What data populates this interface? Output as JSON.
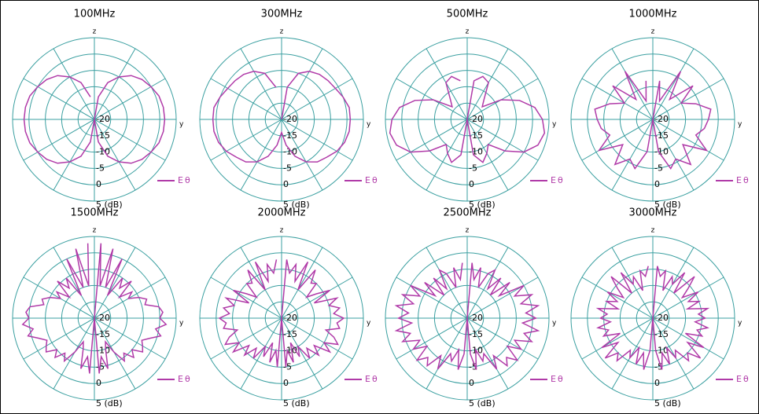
{
  "chart_data": [
    {
      "type": "polar",
      "title": "100MHz",
      "x_axis_label": "y",
      "y_axis_label": "z",
      "theta": [
        0,
        10,
        20,
        30,
        40,
        50,
        60,
        70,
        80,
        90,
        100,
        110,
        120,
        130,
        140,
        150,
        160,
        170,
        180,
        190,
        200,
        210,
        220,
        230,
        240,
        250,
        260,
        270,
        280,
        290,
        300,
        310,
        320,
        330,
        340,
        350
      ],
      "series": [
        {
          "name": "Eθ",
          "color": "#b03aa8",
          "values": [
            -20,
            -13,
            -8,
            -5,
            -2.5,
            -1,
            0,
            1,
            1.4,
            1.5,
            1.4,
            1,
            0,
            -1,
            -2.5,
            -5,
            -8,
            -13,
            -20,
            -13,
            -8,
            -5,
            -2.5,
            -1,
            0,
            1,
            1.4,
            1.5,
            1.4,
            1,
            0,
            -1,
            -2.5,
            -5,
            -8,
            -13
          ]
        }
      ],
      "rlim": [
        -20,
        5
      ],
      "rticks": [
        -20,
        -15,
        -10,
        -5,
        0,
        {
          "value": 5,
          "label": "5 (dB)"
        }
      ],
      "grid": true,
      "grid_color": "#3a9fa0"
    },
    {
      "type": "polar",
      "title": "300MHz",
      "x_axis_label": "y",
      "y_axis_label": "z",
      "theta": [
        0,
        10,
        20,
        30,
        40,
        50,
        60,
        70,
        80,
        90,
        100,
        110,
        120,
        130,
        140,
        150,
        160,
        170,
        180,
        190,
        200,
        210,
        220,
        230,
        240,
        250,
        260,
        270,
        280,
        290,
        300,
        310,
        320,
        330,
        340,
        350
      ],
      "series": [
        {
          "name": "Eθ",
          "color": "#b03aa8",
          "values": [
            -20,
            -10,
            -5,
            -3,
            -2,
            -1.5,
            -1,
            0,
            1,
            1,
            1,
            0.5,
            -0.5,
            -2,
            -3,
            -5,
            -8,
            -12,
            -16,
            -12,
            -8,
            -5,
            -3,
            -2,
            -0.5,
            0.5,
            1,
            1,
            1,
            0,
            -1,
            -1.5,
            -2,
            -3,
            -5,
            -10
          ]
        }
      ],
      "rlim": [
        -20,
        5
      ],
      "rticks": [
        -20,
        -15,
        -10,
        -5,
        0,
        {
          "value": 5,
          "label": "5 (dB)"
        }
      ],
      "grid": true,
      "grid_color": "#3a9fa0"
    },
    {
      "type": "polar",
      "title": "500MHz",
      "x_axis_label": "y",
      "y_axis_label": "z",
      "theta": [
        0,
        10,
        20,
        30,
        40,
        50,
        60,
        70,
        80,
        90,
        100,
        110,
        120,
        130,
        140,
        150,
        160,
        170,
        180,
        190,
        200,
        210,
        220,
        230,
        240,
        250,
        260,
        270,
        280,
        290,
        300,
        310,
        320,
        330,
        340,
        350
      ],
      "series": [
        {
          "name": "Eθ",
          "color": "#b03aa8",
          "values": [
            -20,
            -8,
            -6,
            -7,
            -12,
            -14,
            -8,
            -3,
            1,
            3,
            4,
            3,
            0,
            -5,
            -10,
            -8,
            -6,
            -9,
            -20,
            -9,
            -6,
            -8,
            -10,
            -5,
            0,
            3,
            4,
            3,
            1,
            -3,
            -8,
            -14,
            -12,
            -7,
            -6,
            -8
          ]
        }
      ],
      "rlim": [
        -20,
        5
      ],
      "rticks": [
        -20,
        -15,
        -10,
        -5,
        0,
        {
          "value": 5,
          "label": "5 (dB)"
        }
      ],
      "grid": true,
      "grid_color": "#3a9fa0"
    },
    {
      "type": "polar",
      "title": "1000MHz",
      "x_axis_label": "y",
      "y_axis_label": "z",
      "theta": [
        0,
        10,
        20,
        30,
        40,
        50,
        60,
        70,
        80,
        90,
        100,
        110,
        120,
        130,
        140,
        150,
        160,
        170,
        180,
        190,
        200,
        210,
        220,
        230,
        240,
        250,
        260,
        270,
        280,
        290,
        300,
        310,
        320,
        330,
        340,
        350
      ],
      "series": [
        {
          "name": "Eθ",
          "color": "#b03aa8",
          "values": [
            -20,
            -8,
            -14,
            -3,
            -12,
            -4,
            -10,
            -6,
            -2,
            -3,
            -4,
            -6,
            -1,
            -8,
            -2,
            -6,
            -4,
            -10,
            -20,
            -10,
            -4,
            -6,
            -2,
            -8,
            -1,
            -6,
            -4,
            -3,
            -2,
            -6,
            -10,
            -4,
            -12,
            -3,
            -14,
            -8
          ]
        }
      ],
      "rlim": [
        -20,
        5
      ],
      "rticks": [
        -20,
        -15,
        -10,
        -5,
        0,
        {
          "value": 5,
          "label": "5 (dB)"
        }
      ],
      "grid": true,
      "grid_color": "#3a9fa0"
    },
    {
      "type": "polar",
      "title": "1500MHz",
      "x_axis_label": "y",
      "y_axis_label": "z",
      "theta": [
        0,
        5,
        10,
        15,
        20,
        25,
        30,
        35,
        40,
        45,
        50,
        55,
        60,
        65,
        70,
        75,
        80,
        85,
        90,
        95,
        100,
        105,
        110,
        115,
        120,
        125,
        130,
        135,
        140,
        145,
        150,
        155,
        160,
        165,
        170,
        175,
        180,
        185,
        190,
        195,
        200,
        205,
        210,
        215,
        220,
        225,
        230,
        235,
        240,
        245,
        250,
        255,
        260,
        265,
        270,
        275,
        280,
        285,
        290,
        295,
        300,
        305,
        310,
        315,
        320,
        325,
        330,
        335,
        340,
        345,
        350,
        355
      ],
      "series": [
        {
          "name": "Eθ",
          "color": "#b03aa8",
          "values": [
            -20,
            3,
            -10,
            2,
            -10,
            0,
            -12,
            -5,
            -8,
            -4,
            -10,
            -6,
            -8,
            -5,
            -3,
            -4,
            0,
            1,
            0,
            2,
            -1,
            1,
            -2,
            -4,
            -3,
            -2,
            -5,
            -3,
            -6,
            -4,
            -8,
            -12,
            -10,
            -4,
            -8,
            -3,
            -20,
            -3,
            -8,
            -4,
            -10,
            -12,
            -8,
            -4,
            -6,
            -3,
            -5,
            -2,
            -3,
            -4,
            -2,
            1,
            -1,
            2,
            0,
            1,
            0,
            -4,
            -3,
            -5,
            -8,
            -6,
            -10,
            -4,
            -8,
            -5,
            -12,
            0,
            -10,
            2,
            -10,
            3
          ]
        }
      ],
      "rlim": [
        -20,
        5
      ],
      "rticks": [
        -20,
        -15,
        -10,
        -5,
        0,
        {
          "value": 5,
          "label": "5 (dB)"
        }
      ],
      "grid": true,
      "grid_color": "#3a9fa0"
    },
    {
      "type": "polar",
      "title": "2000MHz",
      "x_axis_label": "y",
      "y_axis_label": "z",
      "theta": [
        0,
        5,
        10,
        15,
        20,
        25,
        30,
        35,
        40,
        45,
        50,
        55,
        60,
        65,
        70,
        75,
        80,
        85,
        90,
        95,
        100,
        105,
        110,
        115,
        120,
        125,
        130,
        135,
        140,
        145,
        150,
        155,
        160,
        165,
        170,
        175,
        180,
        185,
        190,
        195,
        200,
        205,
        210,
        215,
        220,
        225,
        230,
        235,
        240,
        245,
        250,
        255,
        260,
        265,
        270,
        275,
        280,
        285,
        290,
        295,
        300,
        305,
        310,
        315,
        320,
        325,
        330,
        335,
        340,
        345,
        350,
        355
      ],
      "series": [
        {
          "name": "Eθ",
          "color": "#b03aa8",
          "values": [
            -20,
            -2,
            -6,
            -3,
            -8,
            -1,
            -10,
            -2,
            -6,
            -5,
            -10,
            -7,
            -3,
            -9,
            -2,
            -5,
            -2,
            -4,
            -1,
            -3,
            -2,
            -6,
            -3,
            -1,
            -5,
            -2,
            -7,
            -4,
            -8,
            -5,
            -10,
            -7,
            -12,
            -6,
            -10,
            -5,
            -20,
            -5,
            -10,
            -6,
            -12,
            -7,
            -10,
            -5,
            -8,
            -4,
            -7,
            -2,
            -5,
            -1,
            -3,
            -6,
            -2,
            -3,
            -1,
            -4,
            -2,
            -5,
            -2,
            -9,
            -3,
            -7,
            -10,
            -5,
            -6,
            -2,
            -10,
            -1,
            -8,
            -3,
            -6,
            -2
          ]
        }
      ],
      "rlim": [
        -20,
        5
      ],
      "rticks": [
        -20,
        -15,
        -10,
        -5,
        0,
        {
          "value": 5,
          "label": "5 (dB)"
        }
      ],
      "grid": true,
      "grid_color": "#3a9fa0"
    },
    {
      "type": "polar",
      "title": "2500MHz",
      "x_axis_label": "y",
      "y_axis_label": "z",
      "theta": [
        0,
        5,
        10,
        15,
        20,
        25,
        30,
        35,
        40,
        45,
        50,
        55,
        60,
        65,
        70,
        75,
        80,
        85,
        90,
        95,
        100,
        105,
        110,
        115,
        120,
        125,
        130,
        135,
        140,
        145,
        150,
        155,
        160,
        165,
        170,
        175,
        180,
        185,
        190,
        195,
        200,
        205,
        210,
        215,
        220,
        225,
        230,
        235,
        240,
        245,
        250,
        255,
        260,
        265,
        270,
        275,
        280,
        285,
        290,
        295,
        300,
        305,
        310,
        315,
        320,
        325,
        330,
        335,
        340,
        345,
        350,
        355
      ],
      "series": [
        {
          "name": "Eθ",
          "color": "#b03aa8",
          "values": [
            -20,
            -3,
            -8,
            -4,
            -10,
            -5,
            -3,
            -9,
            -4,
            -10,
            -3,
            -8,
            0,
            -4,
            1,
            -3,
            2,
            -2,
            1,
            -3,
            2,
            -2,
            1,
            -4,
            -1,
            -5,
            0,
            -3,
            -1,
            -6,
            -2,
            -8,
            -6,
            -10,
            -4,
            -9,
            -20,
            -9,
            -4,
            -10,
            -6,
            -8,
            -2,
            -6,
            -1,
            -3,
            0,
            -5,
            -1,
            -4,
            1,
            -2,
            2,
            -3,
            1,
            -2,
            2,
            -3,
            1,
            -4,
            0,
            -8,
            -3,
            -10,
            -4,
            -9,
            -3,
            -5,
            -10,
            -4,
            -8,
            -3
          ]
        }
      ],
      "rlim": [
        -20,
        5
      ],
      "rticks": [
        -20,
        -15,
        -10,
        -5,
        0,
        {
          "value": 5,
          "label": "5 (dB)"
        }
      ],
      "grid": true,
      "grid_color": "#3a9fa0"
    },
    {
      "type": "polar",
      "title": "3000MHz",
      "x_axis_label": "y",
      "y_axis_label": "z",
      "theta": [
        0,
        5,
        10,
        15,
        20,
        25,
        30,
        35,
        40,
        45,
        50,
        55,
        60,
        65,
        70,
        75,
        80,
        85,
        90,
        95,
        100,
        105,
        110,
        115,
        120,
        125,
        130,
        135,
        140,
        145,
        150,
        155,
        160,
        165,
        170,
        175,
        180,
        185,
        190,
        195,
        200,
        205,
        210,
        215,
        220,
        225,
        230,
        235,
        240,
        245,
        250,
        255,
        260,
        265,
        270,
        275,
        280,
        285,
        290,
        295,
        300,
        305,
        310,
        315,
        320,
        325,
        330,
        335,
        340,
        345,
        350,
        355
      ],
      "series": [
        {
          "name": "Eθ",
          "color": "#b03aa8",
          "values": [
            -20,
            -4,
            -7,
            -5,
            -11,
            -6,
            -8,
            -3,
            -10,
            -2,
            -6,
            -9,
            -4,
            -8,
            -5,
            -9,
            -3,
            -6,
            -4,
            -7,
            -3,
            -6,
            -4,
            -9,
            -2,
            -7,
            -1,
            -5,
            -3,
            -8,
            -6,
            -10,
            -5,
            -9,
            -4,
            -10,
            -20,
            -10,
            -4,
            -9,
            -5,
            -10,
            -6,
            -8,
            -3,
            -5,
            -1,
            -7,
            -2,
            -9,
            -4,
            -6,
            -3,
            -7,
            -4,
            -6,
            -3,
            -9,
            -5,
            -8,
            -4,
            -9,
            -6,
            -2,
            -10,
            -3,
            -8,
            -6,
            -11,
            -5,
            -7,
            -4
          ]
        }
      ],
      "rlim": [
        -20,
        5
      ],
      "rticks": [
        -20,
        -15,
        -10,
        -5,
        0,
        {
          "value": 5,
          "label": "5 (dB)"
        }
      ],
      "grid": true,
      "grid_color": "#3a9fa0"
    }
  ]
}
